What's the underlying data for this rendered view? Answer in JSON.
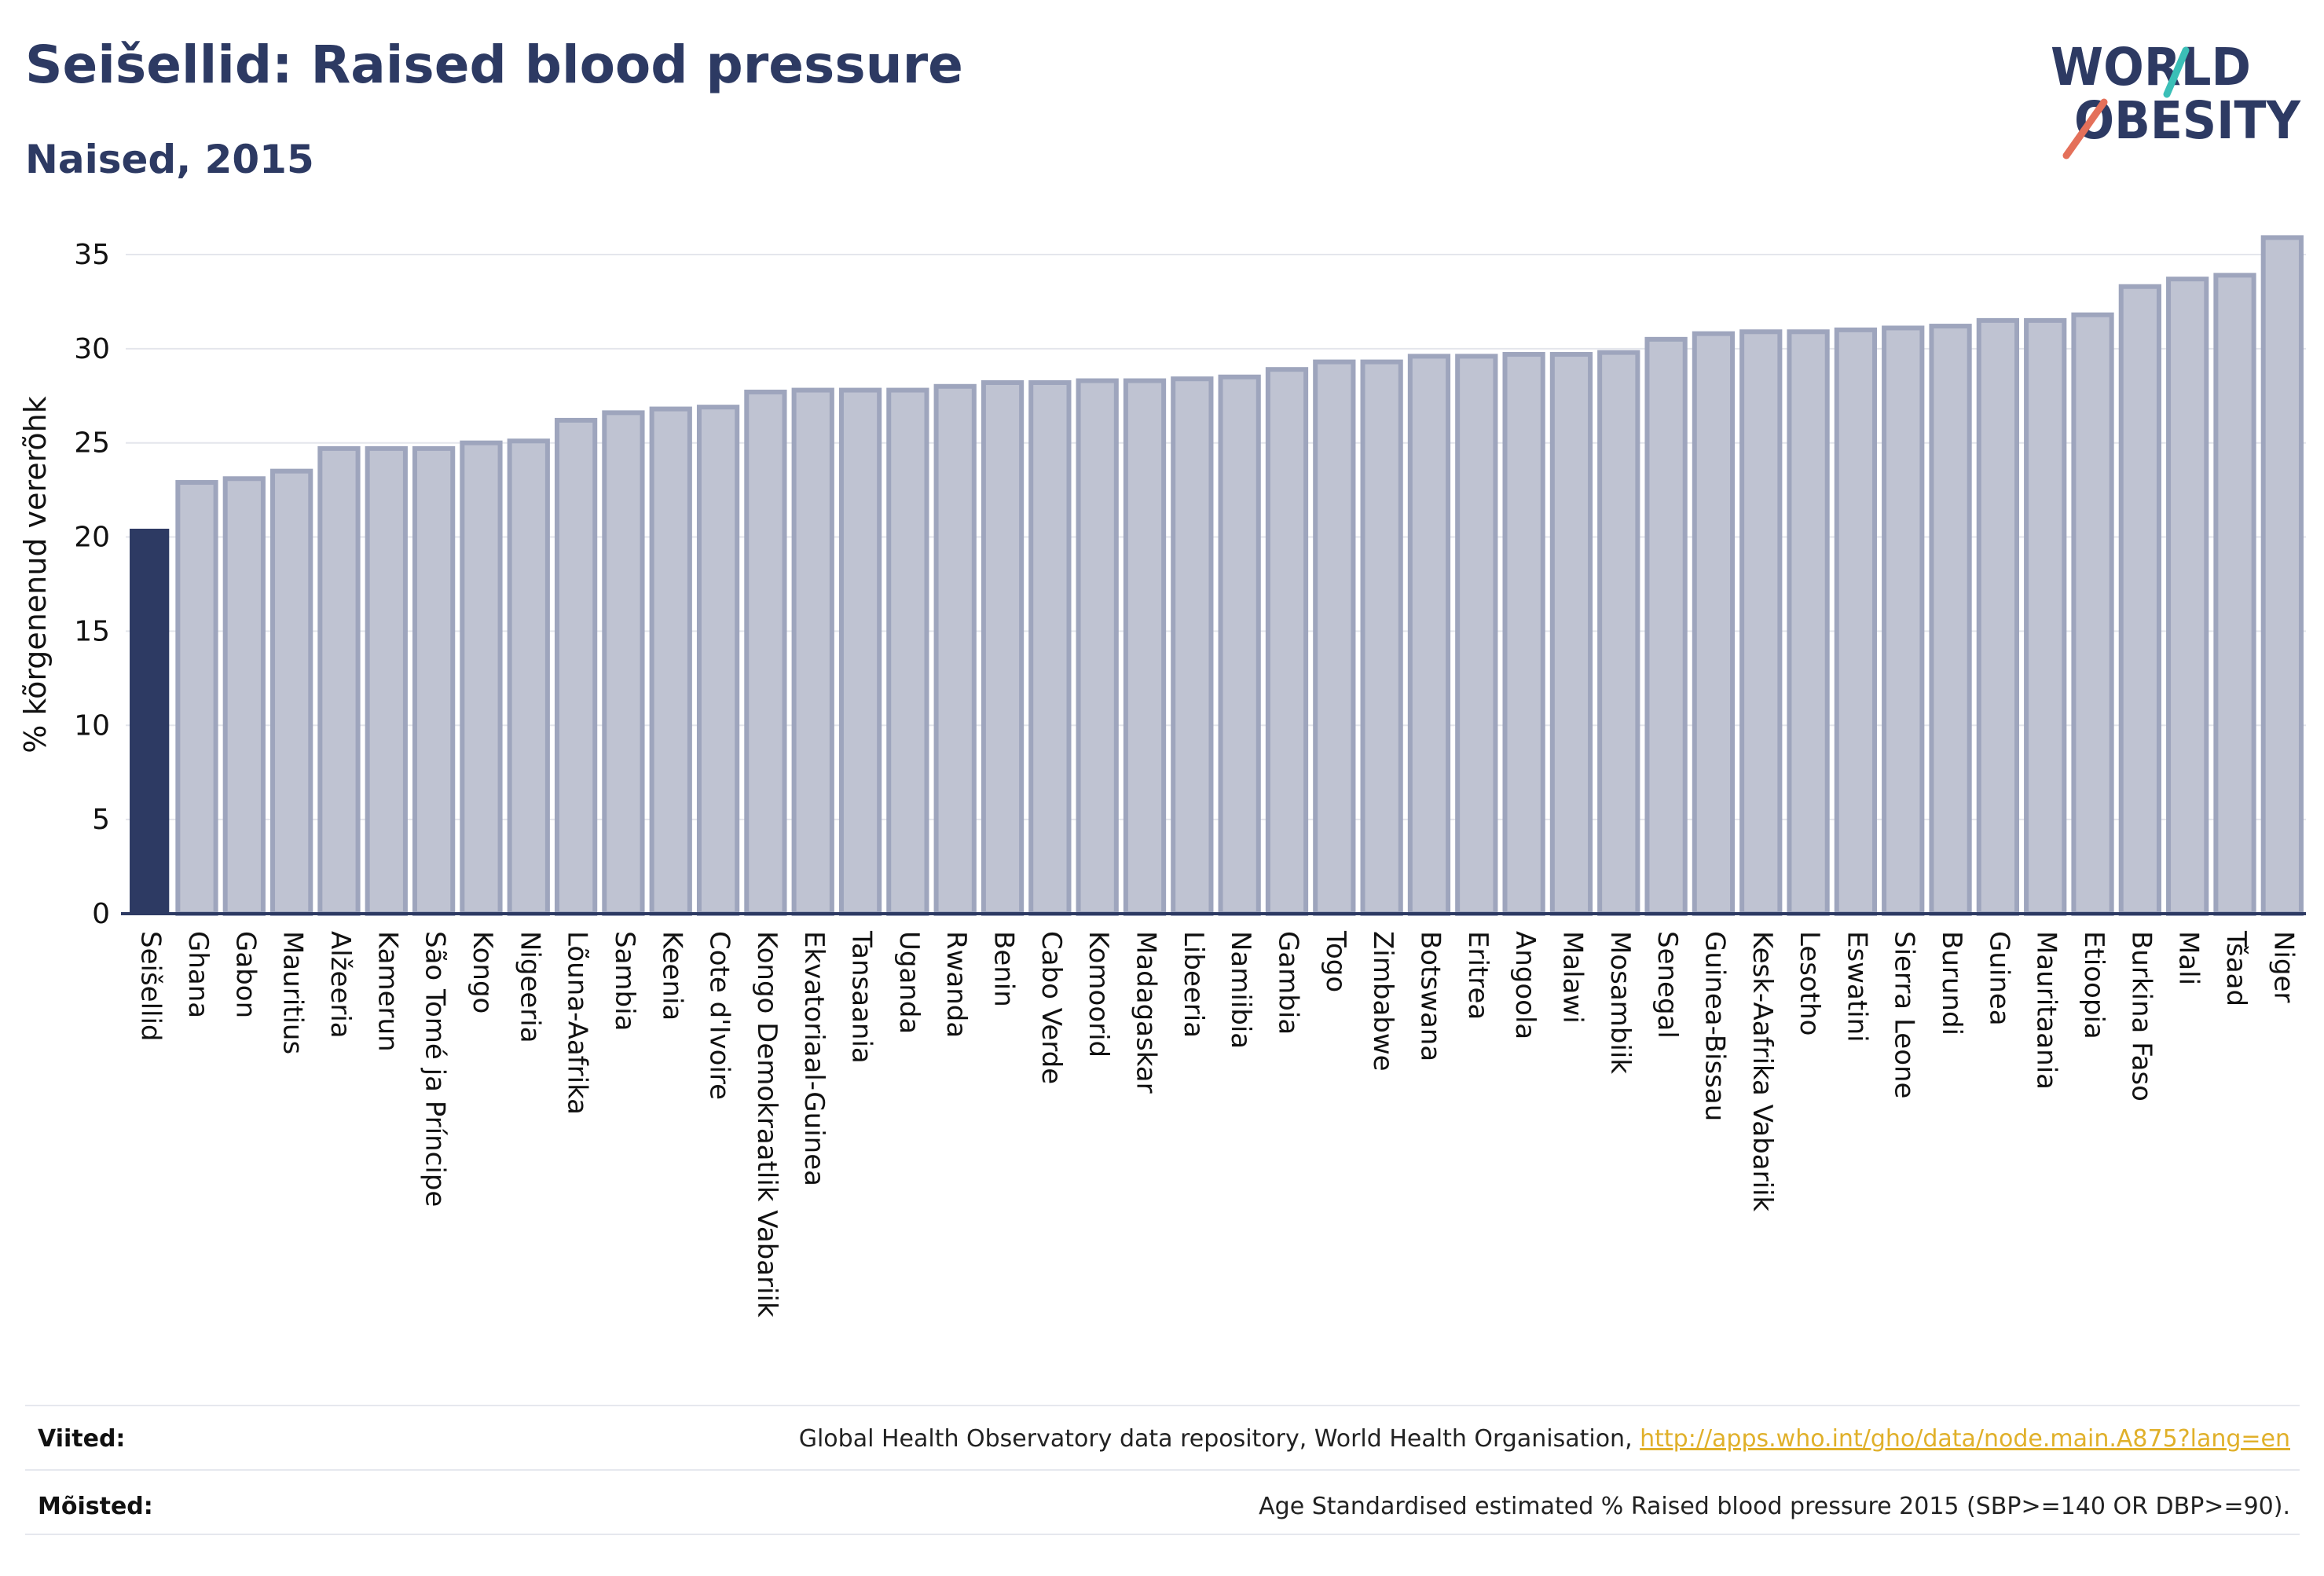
{
  "header": {
    "title": "Seišellid: Raised blood pressure",
    "subtitle": "Naised, 2015"
  },
  "logo": {
    "line1": "WORLD",
    "line2": "OBESITY"
  },
  "chart_data": {
    "type": "bar",
    "ylabel": "% kõrgenenud vererõhk",
    "xlabel": "",
    "ylim": [
      0,
      36
    ],
    "yticks": [
      0,
      5,
      10,
      15,
      20,
      25,
      30,
      35
    ],
    "grid": true,
    "highlight_index": 0,
    "colors": {
      "highlight": "#2d3a63",
      "bar_fill": "#bfc3d2",
      "bar_stroke": "#9ea5bd",
      "grid": "#e4e6ec",
      "axis": "#2d3a63"
    },
    "categories": [
      "Seišellid",
      "Ghana",
      "Gabon",
      "Mauritius",
      "Alžeeria",
      "Kamerun",
      "São Tomé ja Príncipe",
      "Kongo",
      "Nigeeria",
      "Lõuna-Aafrika",
      "Sambia",
      "Keenia",
      "Cote d'Ivoire",
      "Kongo Demokraatlik Vabariik",
      "Ekvatoriaal-Guinea",
      "Tansaania",
      "Uganda",
      "Rwanda",
      "Benin",
      "Cabo Verde",
      "Komoorid",
      "Madagaskar",
      "Libeeria",
      "Namiibia",
      "Gambia",
      "Togo",
      "Zimbabwe",
      "Botswana",
      "Eritrea",
      "Angoola",
      "Malawi",
      "Mosambiik",
      "Senegal",
      "Guinea-Bissau",
      "Kesk-Aafrika Vabariik",
      "Lesotho",
      "Eswatini",
      "Sierra Leone",
      "Burundi",
      "Guinea",
      "Mauritaania",
      "Etioopia",
      "Burkina Faso",
      "Mali",
      "Tšaad",
      "Niger"
    ],
    "values": [
      20.4,
      22.9,
      23.1,
      23.5,
      24.7,
      24.7,
      24.7,
      25.0,
      25.1,
      26.2,
      26.6,
      26.8,
      26.9,
      27.7,
      27.8,
      27.8,
      27.8,
      28.0,
      28.2,
      28.2,
      28.3,
      28.3,
      28.4,
      28.5,
      28.9,
      29.3,
      29.3,
      29.6,
      29.6,
      29.7,
      29.7,
      29.8,
      30.5,
      30.8,
      30.9,
      30.9,
      31.0,
      31.1,
      31.2,
      31.5,
      31.5,
      31.8,
      33.3,
      33.7,
      33.9,
      35.9
    ]
  },
  "footer": {
    "sources_label": "Viited:",
    "sources_text": "Global Health Observatory data repository, World Health Organisation, ",
    "sources_link": "http://apps.who.int/gho/data/node.main.A875?lang=en",
    "definitions_label": "Mõisted:",
    "definitions_text": "Age Standardised estimated % Raised blood pressure 2015 (SBP>=140 OR DBP>=90)."
  }
}
